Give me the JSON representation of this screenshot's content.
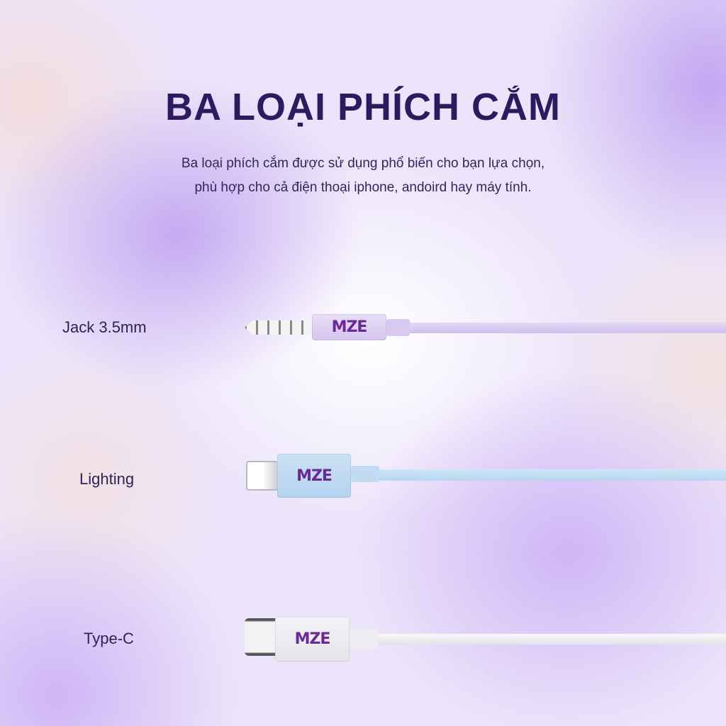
{
  "header": {
    "title": "BA LOẠI PHÍCH CẮM",
    "subtitle_lines": [
      "Ba loại phích cắm được sử dụng phổ biến cho bạn lựa chọn,",
      "phù hợp cho cả điện thoại iphone, andoird hay máy tính."
    ]
  },
  "plugs": [
    {
      "label": "Jack 3.5mm",
      "brand": "MZE",
      "color": "#dccff0"
    },
    {
      "label": "Lighting",
      "brand": "MZE",
      "color": "#bcd8f2"
    },
    {
      "label": "Type-C",
      "brand": "MZE",
      "color": "#f1f1f5"
    }
  ]
}
